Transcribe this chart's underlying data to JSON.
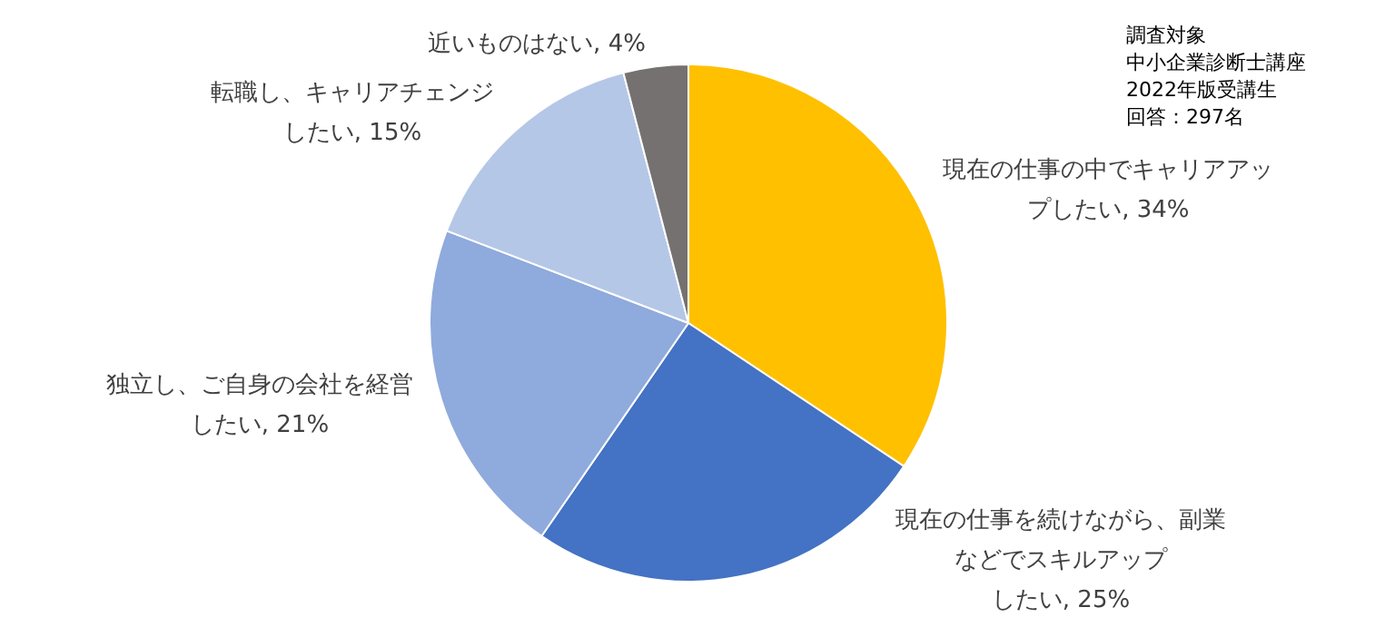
{
  "chart_data": {
    "type": "pie",
    "categories": [
      "現在の仕事の中でキャリアアップしたい",
      "現在の仕事を続けながら、副業などでスキルアップしたい",
      "独立し、ご自身の会社を経営したい",
      "転職し、キャリアチェンジしたい",
      "近いものはない"
    ],
    "values": [
      34,
      25,
      21,
      15,
      4
    ],
    "value_labels": [
      "34%",
      "25%",
      "21%",
      "15%",
      "4%"
    ],
    "colors": [
      "#ffc000",
      "#4472c4",
      "#8faadc",
      "#b4c7e7",
      "#767171"
    ],
    "annotations": [
      "調査対象",
      "中小企業診断士講座",
      "2022年版受講生",
      "回答：297名"
    ],
    "legend": false
  }
}
